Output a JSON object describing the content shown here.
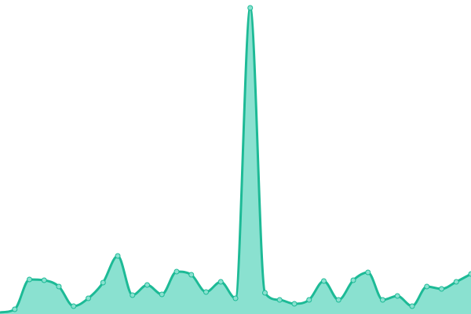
{
  "chart_data": {
    "type": "area",
    "title": "",
    "xlabel": "",
    "ylabel": "",
    "x": [
      0,
      1,
      2,
      3,
      4,
      5,
      6,
      7,
      8,
      9,
      10,
      11,
      12,
      13,
      14,
      15,
      16,
      17,
      18,
      19,
      20,
      21,
      22,
      23,
      24,
      25,
      26,
      27,
      28,
      29,
      30,
      31,
      32
    ],
    "values": [
      2,
      6,
      44,
      43,
      35,
      10,
      20,
      40,
      74,
      24,
      37,
      25,
      54,
      50,
      28,
      41,
      20,
      390,
      27,
      18,
      13,
      18,
      42,
      18,
      43,
      53,
      18,
      23,
      10,
      35,
      32,
      41,
      51
    ],
    "ylim": [
      0,
      400
    ],
    "grid": false,
    "legend": "none",
    "smooth": true,
    "markers": true,
    "colors": {
      "line": "#1dba96",
      "fill": "#8ae1d0",
      "marker_fill": "#8ae1d0"
    }
  }
}
